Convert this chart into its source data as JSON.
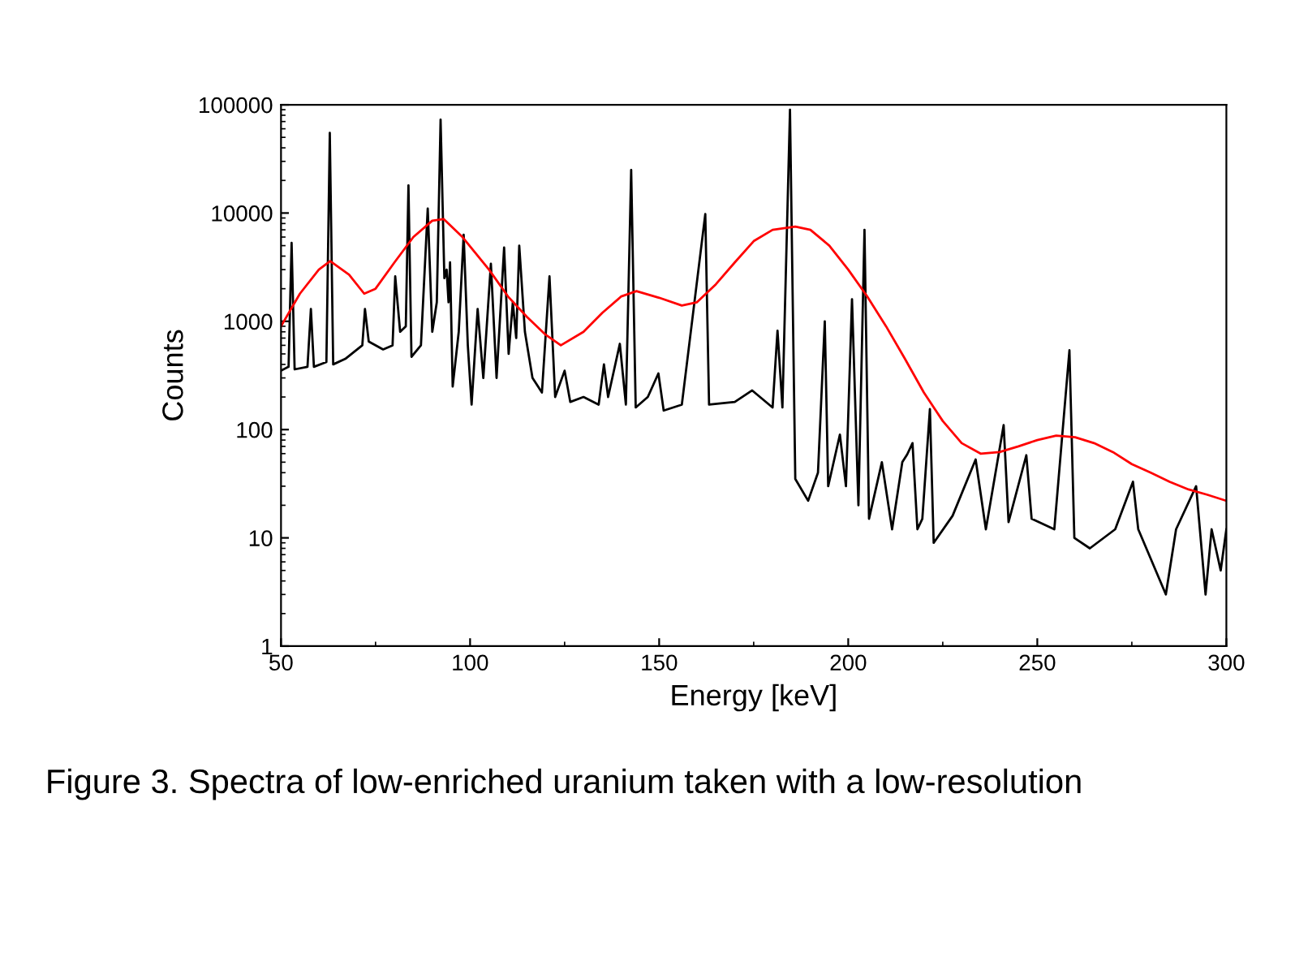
{
  "chart_data": {
    "type": "line",
    "xlabel": "Energy [keV]",
    "ylabel": "Counts",
    "log": "y",
    "grid": false,
    "marker": "none",
    "line_style": "solid",
    "xlim": [
      50,
      300
    ],
    "xticks": [
      50,
      100,
      150,
      200,
      250,
      300
    ],
    "ylim": [
      1,
      100000
    ],
    "yticks": [
      1,
      10,
      100,
      1000,
      10000,
      100000
    ],
    "annotations": [
      "Figure 3. Spectra of low-enriched uranium taken with a low-resolution"
    ],
    "series": [
      {
        "color": "#000000",
        "x": [
          50,
          52,
          52.8,
          53.6,
          57,
          57.9,
          58.7,
          62,
          62.9,
          63.8,
          67,
          71.5,
          72.2,
          73.2,
          77,
          79.5,
          80.2,
          81.5,
          83,
          83.7,
          84.5,
          87,
          88.8,
          90,
          91.2,
          92.2,
          93.2,
          93.8,
          94.3,
          94.7,
          95.4,
          97,
          98.3,
          99.4,
          100.4,
          102,
          103.5,
          105.5,
          107,
          109,
          110.2,
          111.3,
          112.2,
          113,
          114.5,
          116.5,
          119,
          121,
          122.5,
          125,
          126.5,
          130,
          134,
          135.4,
          136.5,
          139.6,
          141.2,
          142.6,
          143.8,
          147,
          149.8,
          151.2,
          156,
          162.2,
          163.2,
          170,
          174.6,
          180,
          181.3,
          182.6,
          184.6,
          186,
          189.4,
          192,
          193.8,
          194.7,
          197.8,
          199.4,
          201,
          202.7,
          204.3,
          205.5,
          208.9,
          211.6,
          214.3,
          215.6,
          217,
          218.3,
          219.6,
          221.6,
          222.6,
          227.6,
          233.7,
          236.4,
          241.1,
          242.4,
          247.1,
          248.5,
          254.5,
          258.5,
          259.8,
          263.9,
          270.6,
          275.3,
          276.7,
          284,
          286.7,
          292,
          294.5,
          296.1,
          298.5,
          300
        ],
        "values": [
          350,
          380,
          5300,
          360,
          380,
          1300,
          380,
          420,
          55000,
          400,
          450,
          600,
          1300,
          650,
          550,
          600,
          2600,
          800,
          900,
          18000,
          470,
          600,
          11000,
          800,
          1500,
          73000,
          2500,
          3000,
          1500,
          3500,
          250,
          800,
          6300,
          600,
          170,
          1300,
          300,
          3400,
          300,
          4800,
          500,
          1500,
          700,
          5000,
          800,
          300,
          220,
          2600,
          200,
          350,
          180,
          200,
          170,
          400,
          200,
          620,
          170,
          25000,
          160,
          200,
          330,
          150,
          170,
          9800,
          170,
          180,
          230,
          160,
          820,
          160,
          90000,
          35,
          22,
          40,
          1000,
          30,
          90,
          30,
          1600,
          20,
          7000,
          15,
          50,
          12,
          50,
          59,
          75,
          12,
          15,
          155,
          9,
          16,
          53,
          12,
          110,
          14,
          58,
          15,
          12,
          540,
          10,
          8,
          12,
          33,
          12,
          3,
          12,
          30,
          3,
          12,
          5,
          12
        ]
      },
      {
        "color": "#ff0000",
        "x": [
          50,
          55,
          60,
          63,
          68,
          72,
          75,
          80,
          85,
          90,
          93,
          98,
          105,
          110,
          115,
          120,
          124,
          130,
          135,
          140,
          144,
          150,
          156,
          160,
          165,
          170,
          175,
          180,
          186,
          190,
          195,
          200,
          205,
          210,
          215,
          220,
          225,
          230,
          235,
          240,
          245,
          250,
          255,
          260,
          265,
          270,
          275,
          280,
          285,
          290,
          295,
          300
        ],
        "values": [
          900,
          1800,
          3000,
          3600,
          2700,
          1800,
          2000,
          3500,
          6000,
          8500,
          8800,
          6000,
          3000,
          1700,
          1100,
          750,
          600,
          800,
          1200,
          1700,
          1900,
          1650,
          1400,
          1500,
          2200,
          3500,
          5500,
          7000,
          7500,
          7000,
          5000,
          3000,
          1700,
          900,
          450,
          220,
          120,
          75,
          60,
          62,
          70,
          80,
          88,
          85,
          75,
          62,
          48,
          40,
          33,
          28,
          25,
          22
        ]
      }
    ]
  }
}
